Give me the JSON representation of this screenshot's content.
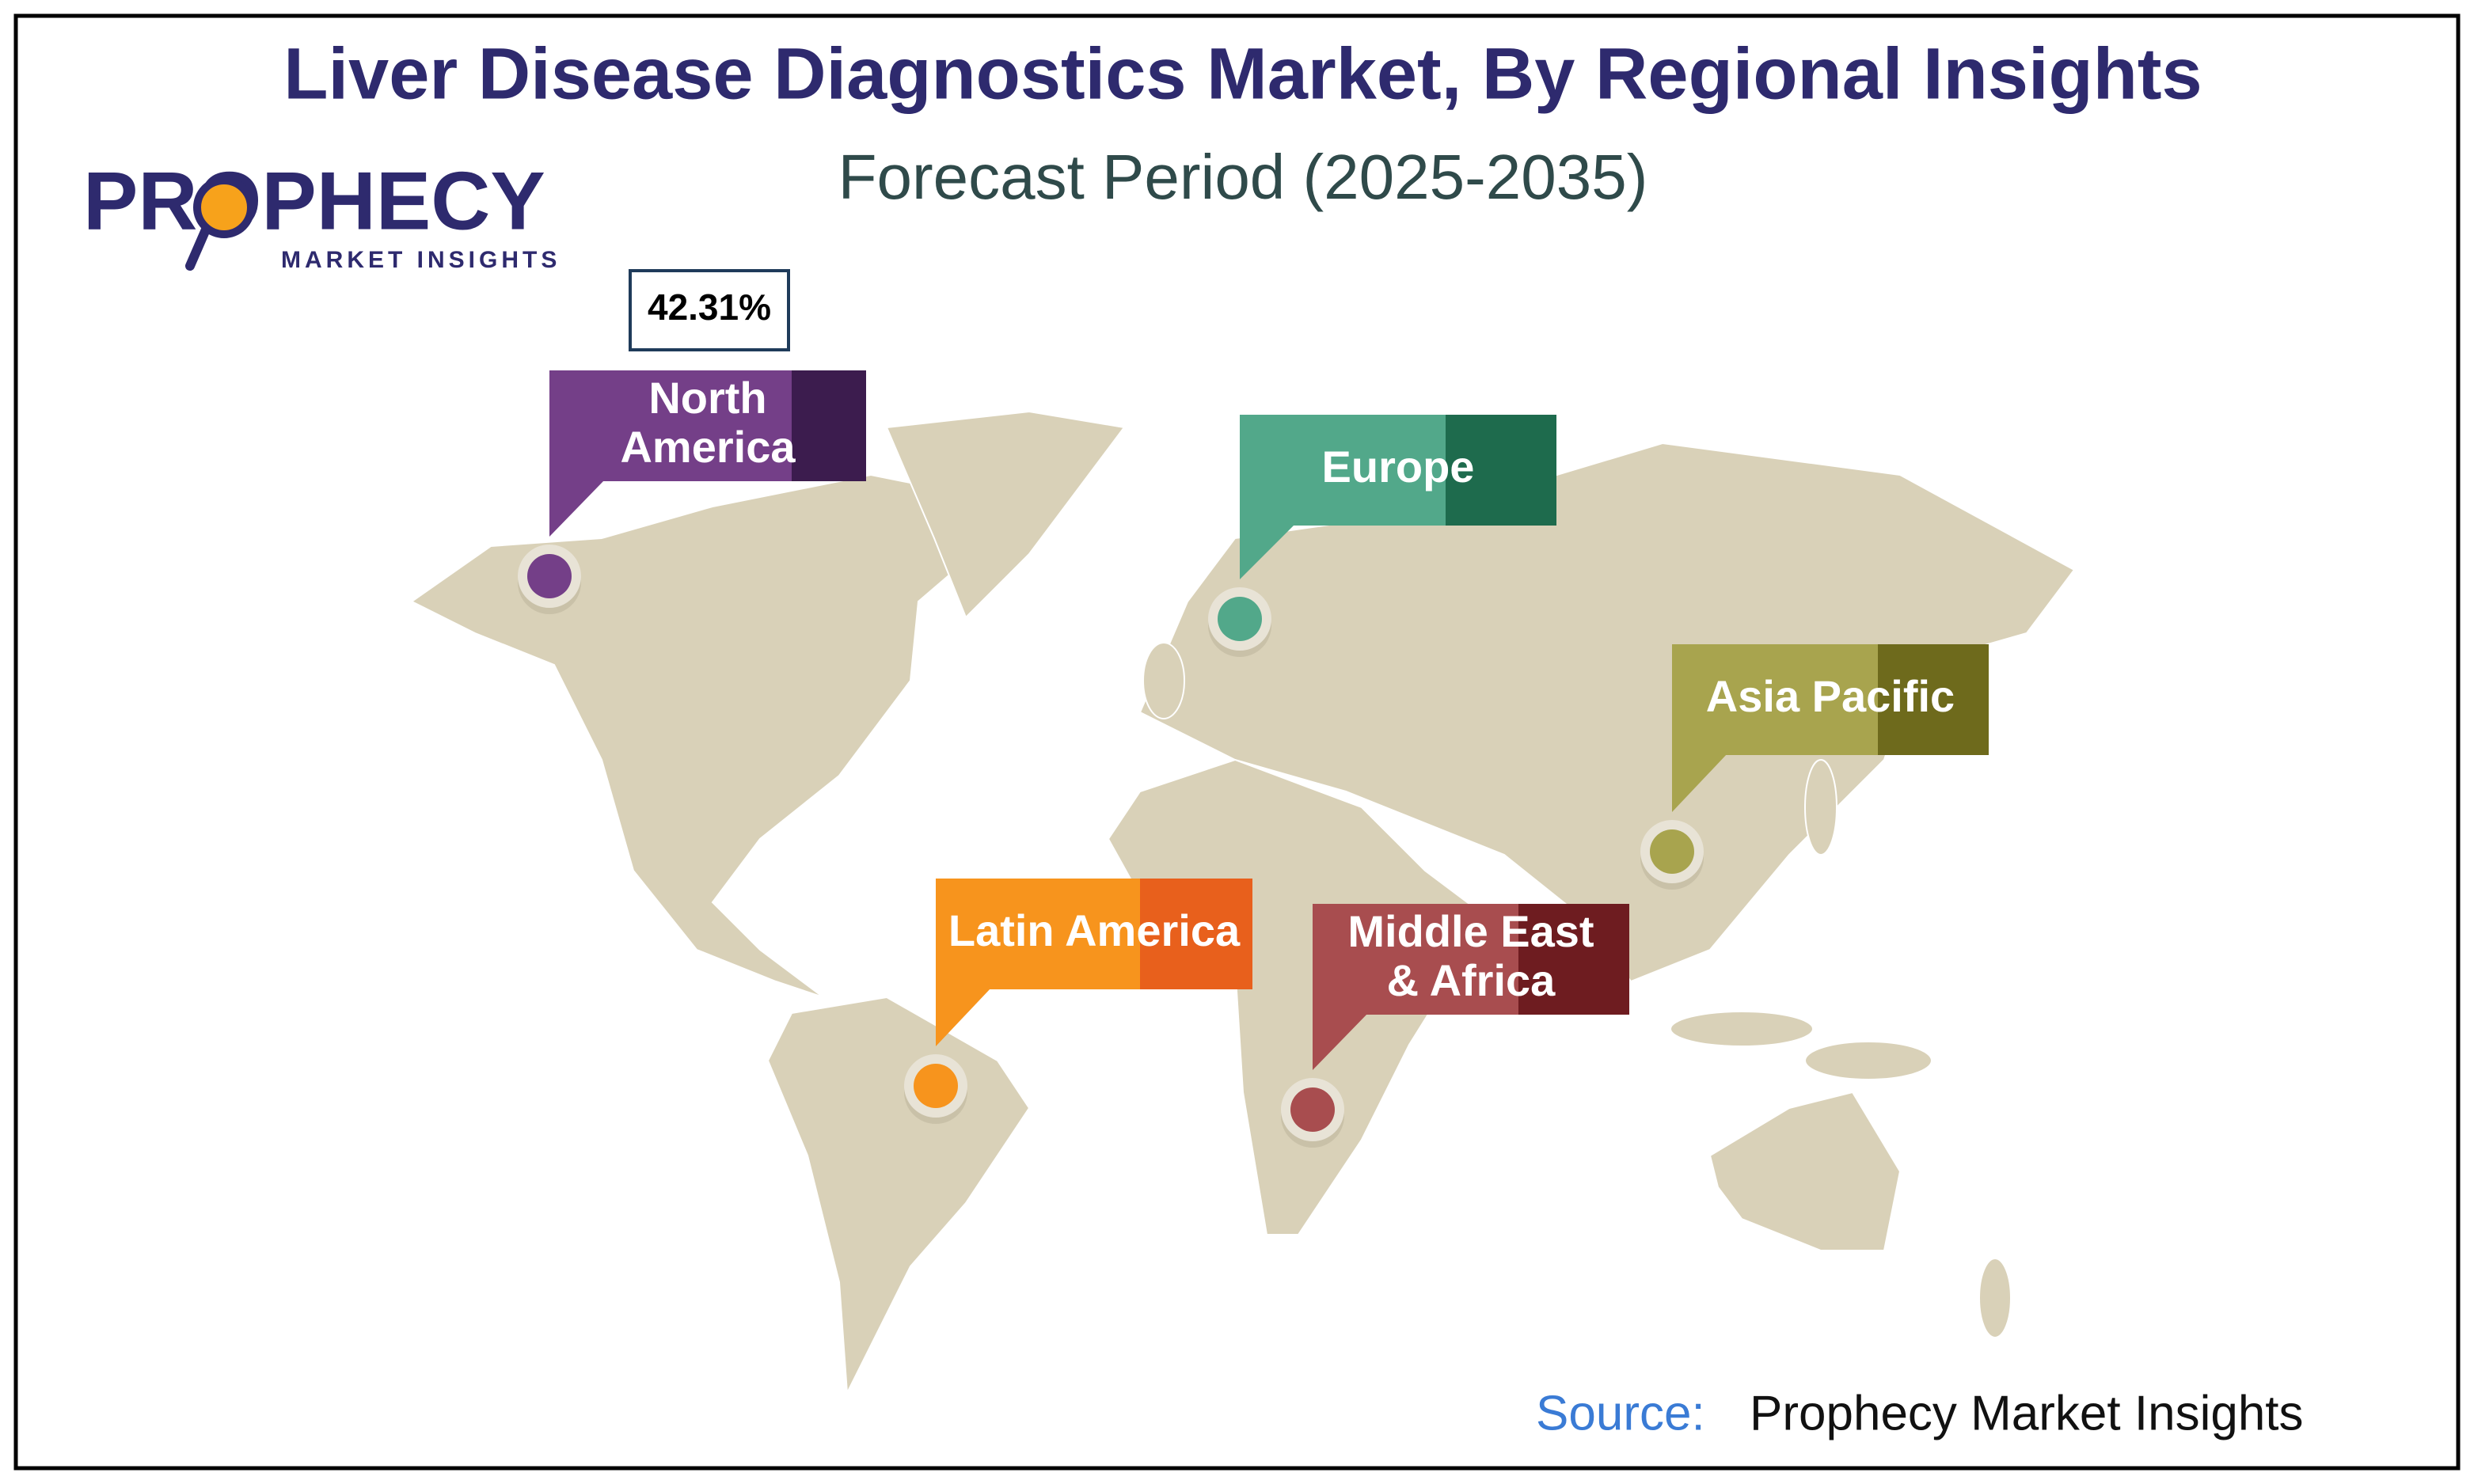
{
  "header": {
    "title": "Liver Disease Diagnostics Market, By Regional Insights",
    "subtitle": "Forecast Period (2025-2035)"
  },
  "logo": {
    "name": "PROPHECY",
    "tagline": "MARKET INSIGHTS"
  },
  "regions": [
    {
      "label": [
        "North",
        "America"
      ],
      "value_label": "42.31%",
      "color": "#743f88",
      "dark": "#3c1c4e"
    },
    {
      "label": [
        "Europe"
      ],
      "color": "#52a88a",
      "dark": "#1e6b4d"
    },
    {
      "label": [
        "Asia Pacific"
      ],
      "color": "#a8a44e",
      "dark": "#6e6a1c"
    },
    {
      "label": [
        "Latin America"
      ],
      "color": "#f7941d",
      "dark": "#e8601c"
    },
    {
      "label": [
        "Middle East",
        "& Africa"
      ],
      "color": "#a84d4f",
      "dark": "#6e1c20"
    }
  ],
  "source": {
    "label": "Source:",
    "text": "Prophecy Market Insights"
  }
}
